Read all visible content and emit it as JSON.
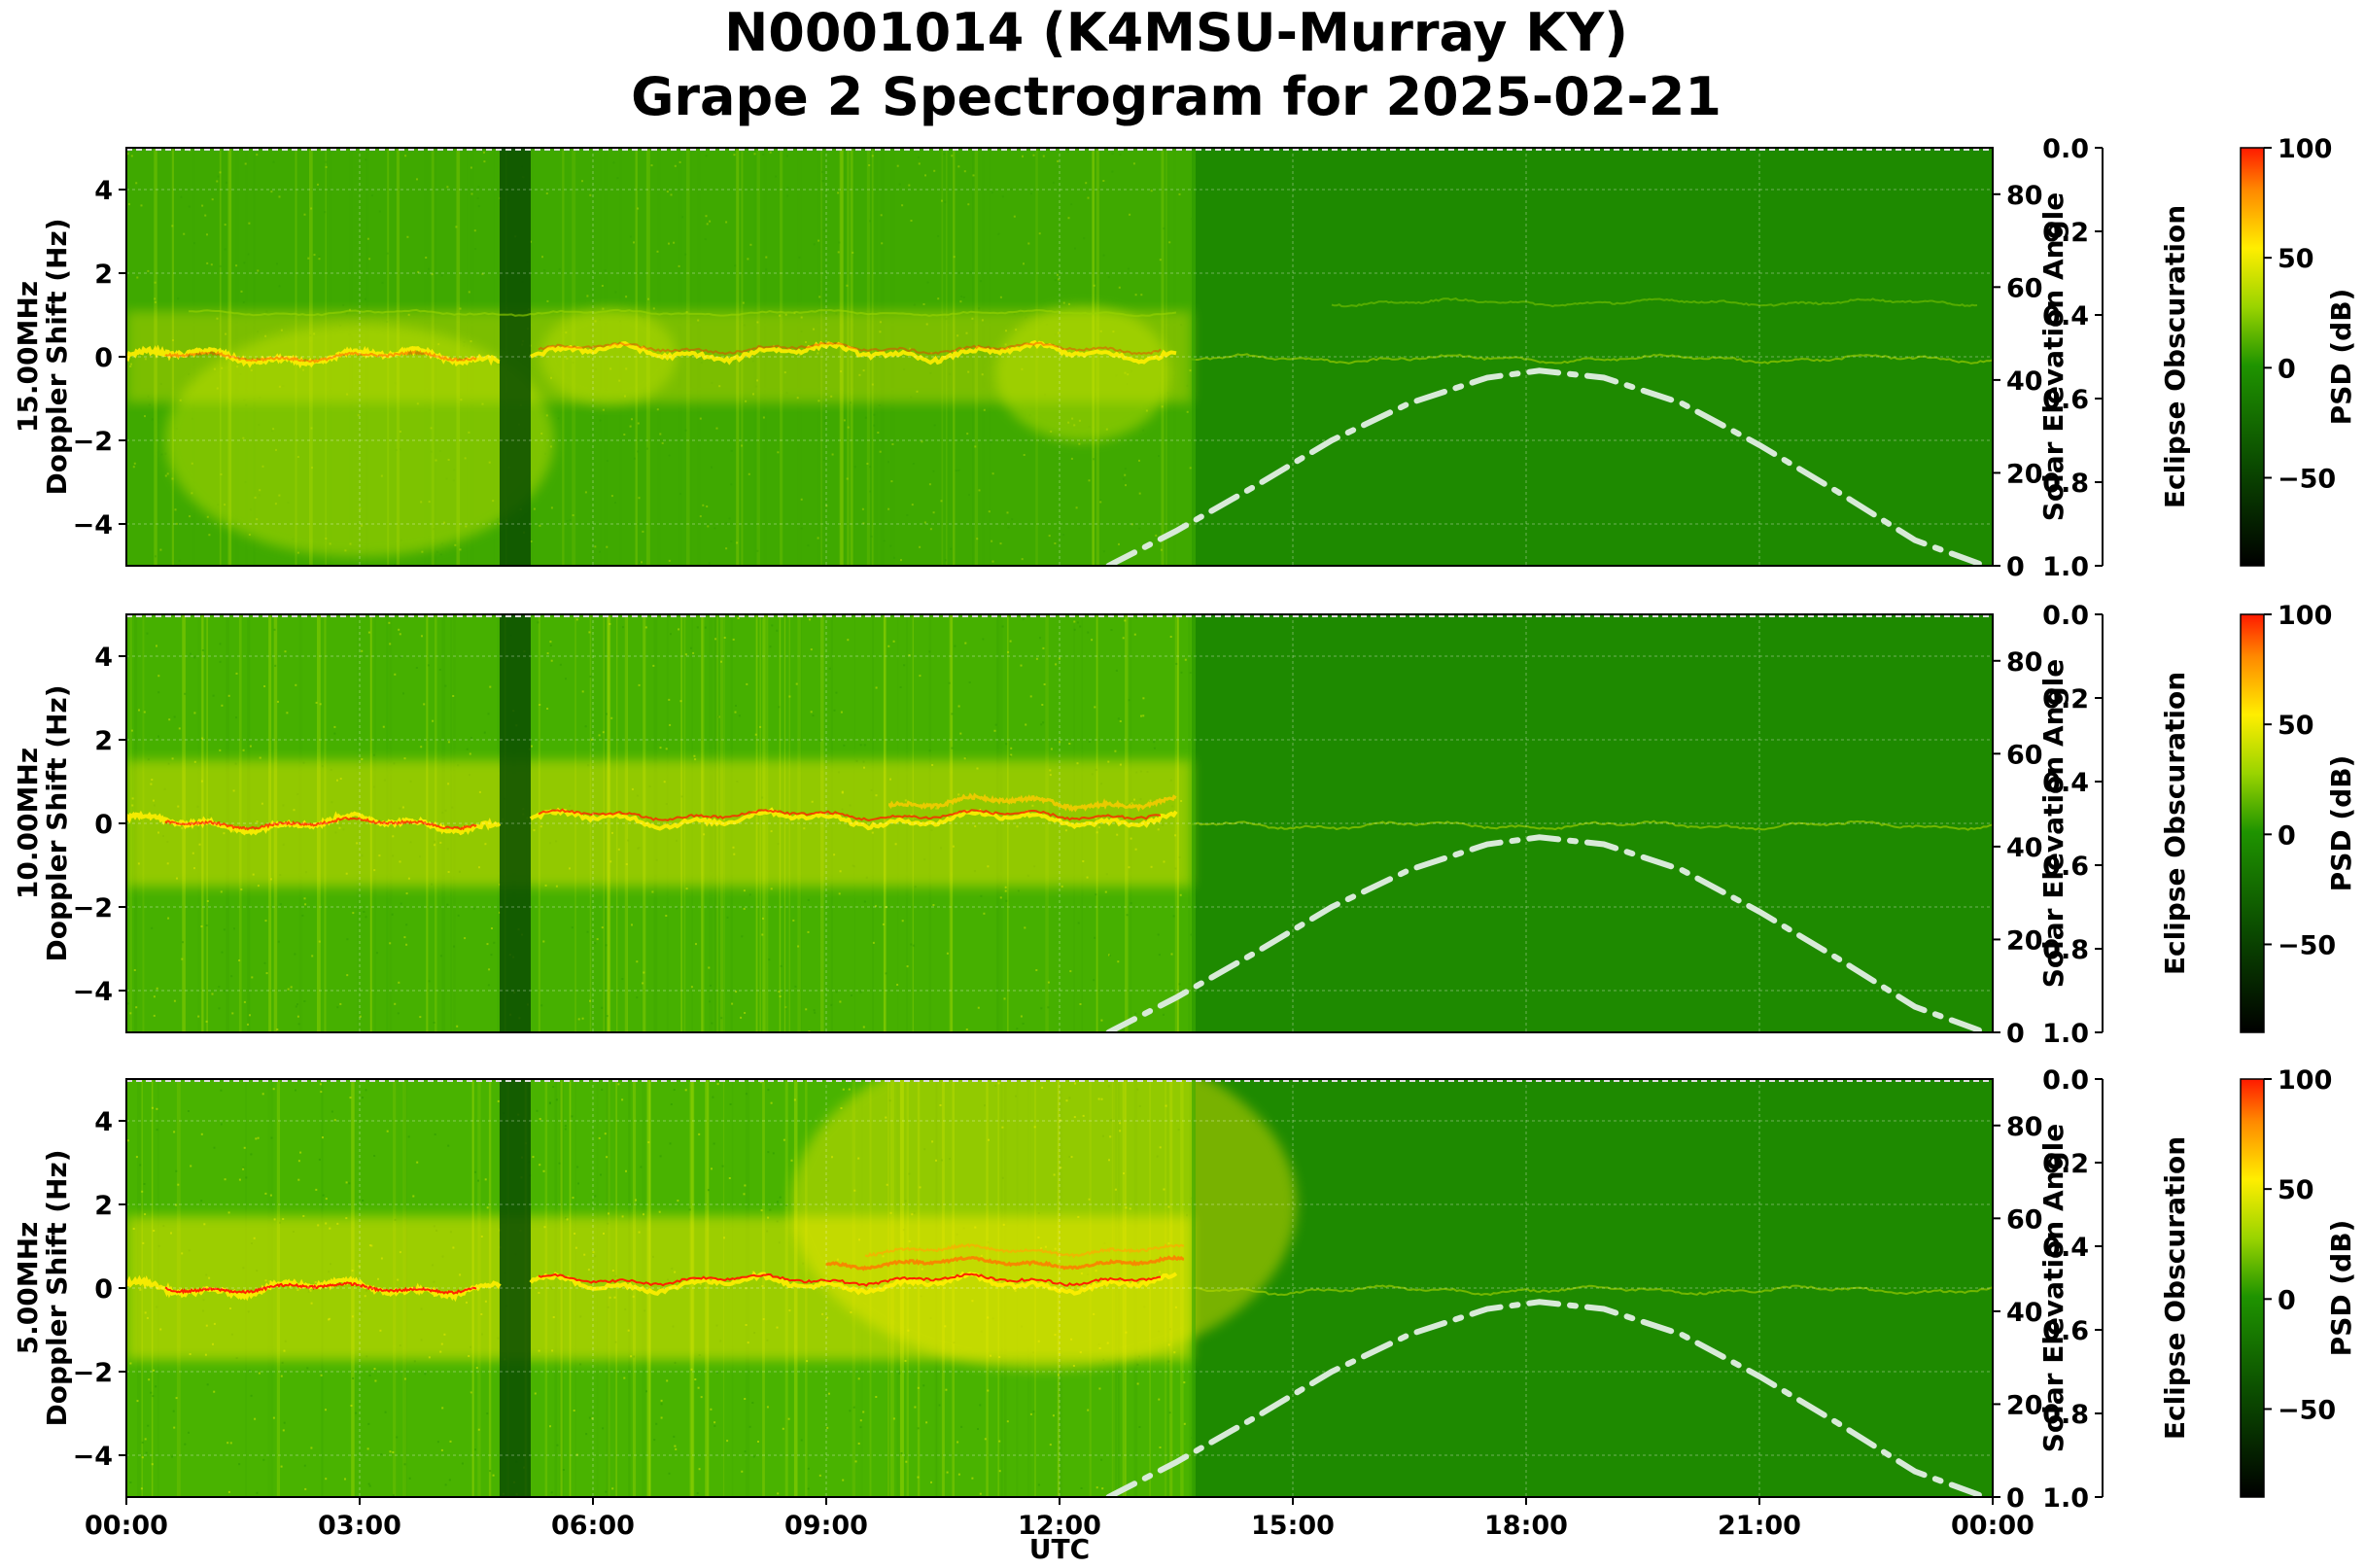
{
  "figure": {
    "title_line1": "N0001014 (K4MSU-Murray KY)",
    "title_line2": "Grape 2 Spectrogram for 2025-02-21",
    "xlabel": "UTC"
  },
  "colors": {
    "background_green": "#1e8a00",
    "dark_green": "#0b4d00",
    "yellow": "#ffee00",
    "red": "#ff2200",
    "solar_curve": "#d8ead8"
  },
  "chart_data": {
    "type": "heatmap",
    "x_tick_labels": [
      "00:00",
      "03:00",
      "06:00",
      "09:00",
      "12:00",
      "15:00",
      "18:00",
      "21:00",
      "00:00"
    ],
    "x_range_hours": [
      0,
      24
    ],
    "y_range": [
      -5,
      5
    ],
    "y_ticks": [
      -4,
      -2,
      0,
      2,
      4
    ],
    "right_axis": {
      "label": "Solar Elevation Angle",
      "range": [
        0,
        90
      ],
      "ticks": [
        0,
        20,
        40,
        60,
        80
      ]
    },
    "eclipse_axis": {
      "label": "Eclipse Obscuration",
      "range": [
        0.0,
        1.0
      ],
      "ticks": [
        "0.0",
        "0.2",
        "0.4",
        "0.6",
        "0.8",
        "1.0"
      ]
    },
    "colorbar": {
      "label": "PSD (dB)",
      "range": [
        -90,
        100
      ],
      "ticks": [
        100,
        50,
        0,
        -50
      ]
    },
    "grid": true,
    "solar_elevation": {
      "hours": [
        12.63,
        13.5,
        14.5,
        15.5,
        16.5,
        17.5,
        18.17,
        19.0,
        20.0,
        21.0,
        22.0,
        23.0,
        23.9
      ],
      "elevation": [
        0,
        7.5,
        17,
        27,
        35,
        40.5,
        42,
        40.5,
        35,
        26,
        16,
        5.5,
        0
      ]
    },
    "panels": [
      {
        "name": "15.00MHz",
        "ylabel_line1": "15.00MHz",
        "ylabel_line2": "Doppler Shift (Hz)",
        "gap_hours": [
          4.8,
          5.2
        ],
        "day_transition_hour": 13.7,
        "night_noise": 0.45
      },
      {
        "name": "10.00MHz",
        "ylabel_line1": "10.00MHz",
        "ylabel_line2": "Doppler Shift (Hz)",
        "gap_hours": [
          4.8,
          5.2
        ],
        "day_transition_hour": 13.7,
        "night_noise": 0.75
      },
      {
        "name": "5.00MHz",
        "ylabel_line1": "5.00MHz",
        "ylabel_line2": "Doppler Shift (Hz)",
        "gap_hours": [
          4.8,
          5.2
        ],
        "day_transition_hour": 13.7,
        "night_noise": 0.9
      }
    ]
  }
}
